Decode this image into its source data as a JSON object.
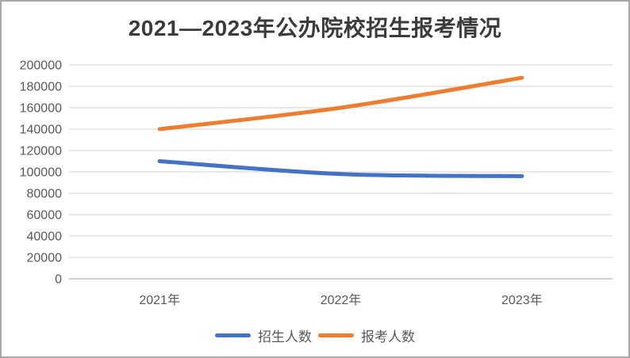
{
  "chart_data": {
    "type": "line",
    "title": "2021—2023年公办院校招生报考情况",
    "categories": [
      "2021年",
      "2022年",
      "2023年"
    ],
    "series": [
      {
        "name": "招生人数",
        "color": "#4472C4",
        "values": [
          110000,
          98000,
          96000
        ]
      },
      {
        "name": "报考人数",
        "color": "#ED7D31",
        "values": [
          140000,
          160000,
          188000
        ]
      }
    ],
    "ylim": [
      0,
      200000
    ],
    "ytick_step": 20000,
    "yticks": [
      0,
      20000,
      40000,
      60000,
      80000,
      100000,
      120000,
      140000,
      160000,
      180000,
      200000
    ],
    "grid": "horizontal-only",
    "legend_position": "bottom",
    "line_smoothing": true,
    "colors": {
      "gridline": "#D9D9D9",
      "axis_line": "#BFBFBF",
      "tick_label": "#595959",
      "title": "#3B3B3B",
      "frame_border": "#A8A8A8",
      "background": "#FFFFFF"
    }
  }
}
